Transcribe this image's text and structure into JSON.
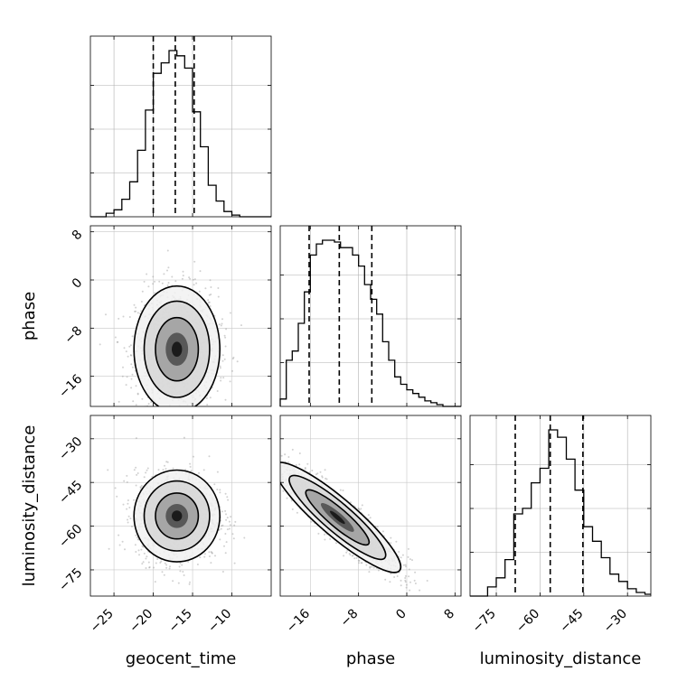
{
  "chart_data": {
    "type": "corner",
    "parameters": [
      "geocent_time",
      "phase",
      "luminosity_distance"
    ],
    "axis_labels": {
      "bottom": [
        "geocent_time",
        "phase",
        "luminosity_distance"
      ],
      "left": [
        "phase",
        "luminosity_distance"
      ]
    },
    "ranges": {
      "geocent_time": [
        -28,
        -5
      ],
      "phase": [
        -21,
        9
      ],
      "luminosity_distance": [
        -84,
        -22
      ]
    },
    "ticks": {
      "geocent_time": [
        -25,
        -20,
        -15,
        -10
      ],
      "phase": [
        -16,
        -8,
        0,
        8
      ],
      "luminosity_distance": [
        -75,
        -60,
        -45,
        -30
      ]
    },
    "tick_labels": {
      "geocent_time": [
        "−25",
        "−20",
        "−15",
        "−10"
      ],
      "phase": [
        "−16",
        "−8",
        "0",
        "8"
      ],
      "luminosity_distance": [
        "−75",
        "−60",
        "−45",
        "−30"
      ]
    },
    "quantiles": {
      "geocent_time": [
        -20.0,
        -17.2,
        -14.8
      ],
      "phase": [
        -16.2,
        -11.2,
        -5.8
      ],
      "luminosity_distance": [
        -68.5,
        -56.5,
        -45.3
      ]
    },
    "histograms": {
      "geocent_time": {
        "edges": [
          -28,
          -27,
          -26,
          -25,
          -24,
          -23,
          -22,
          -21,
          -20,
          -19,
          -18,
          -17,
          -16,
          -15,
          -14,
          -13,
          -12,
          -11,
          -10,
          -9,
          -8,
          -7,
          -6,
          -5
        ],
        "counts": [
          0,
          0,
          2,
          4,
          10,
          20,
          38,
          61,
          82,
          88,
          95,
          92,
          85,
          60,
          40,
          18,
          9,
          3,
          1,
          0,
          0,
          0,
          0
        ]
      },
      "phase": {
        "edges": [
          -21,
          -20,
          -19,
          -18,
          -17,
          -16,
          -15,
          -14,
          -13,
          -12,
          -11,
          -10,
          -9,
          -8,
          -7,
          -6,
          -5,
          -4,
          -3,
          -2,
          -1,
          0,
          1,
          2,
          3,
          4,
          5,
          6,
          7,
          8,
          9
        ],
        "counts": [
          4,
          25,
          30,
          45,
          62,
          82,
          88,
          90,
          90,
          89,
          86,
          86,
          82,
          76,
          66,
          58,
          50,
          35,
          25,
          16,
          12,
          9,
          7,
          5,
          3,
          2,
          1,
          0,
          0,
          0
        ]
      },
      "luminosity_distance": {
        "edges": [
          -84,
          -81,
          -78,
          -75,
          -72,
          -69,
          -66,
          -63,
          -60,
          -57,
          -54,
          -51,
          -48,
          -45,
          -42,
          -39,
          -36,
          -33,
          -30,
          -27,
          -24,
          -22
        ],
        "counts": [
          0,
          0,
          5,
          10,
          20,
          45,
          48,
          62,
          70,
          91,
          87,
          75,
          58,
          38,
          30,
          21,
          12,
          8,
          4,
          2,
          1
        ]
      }
    },
    "pairs": [
      {
        "x": "geocent_time",
        "y": "phase",
        "mean": [
          -17.0,
          -11.5
        ],
        "sd": [
          2.6,
          5.0
        ],
        "corr": 0.0
      },
      {
        "x": "geocent_time",
        "y": "luminosity_distance",
        "mean": [
          -17.0,
          -56.5
        ],
        "sd": [
          2.6,
          7.5
        ],
        "corr": 0.0
      },
      {
        "x": "phase",
        "y": "luminosity_distance",
        "mean": [
          -11.5,
          -57.0
        ],
        "sd": [
          5.0,
          9.0
        ],
        "corr": -0.9
      }
    ],
    "grid": true
  }
}
